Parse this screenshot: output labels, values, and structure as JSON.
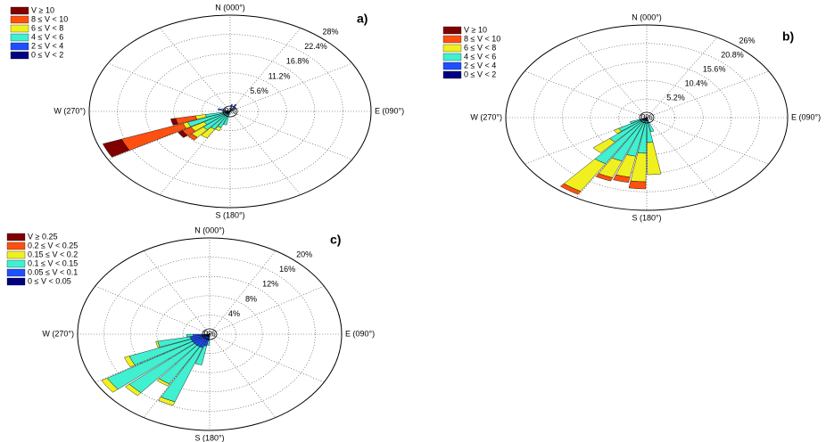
{
  "chart_data": [
    {
      "type": "windrose",
      "panel_label": "a)",
      "center_label": "0%",
      "direction_labels": [
        "N (000°)",
        "E (090°)",
        "S (180°)",
        "W (270°)"
      ],
      "rlim": [
        0,
        28
      ],
      "rticks": [
        {
          "value": 5.6,
          "label": "5.6%"
        },
        {
          "value": 11.2,
          "label": "11.2%"
        },
        {
          "value": 16.8,
          "label": "16.8%"
        },
        {
          "value": 22.4,
          "label": "22.4%"
        },
        {
          "value": 28,
          "label": "28%"
        }
      ],
      "directions": [
        10,
        30,
        50,
        195,
        205,
        215,
        225,
        235,
        245,
        255,
        265,
        285
      ],
      "series": [
        {
          "name": "0 ≤ V < 2",
          "color": "#000080",
          "values": [
            1,
            0.8,
            0.5,
            0.3,
            0.3,
            0.3,
            0.3,
            0.3,
            0.3,
            0.3,
            0.5,
            0.5
          ]
        },
        {
          "name": "2 ≤ V < 4",
          "color": "#1e50ff",
          "values": [
            1,
            1.5,
            1,
            0.7,
            0.7,
            0.7,
            0.7,
            0.7,
            0.7,
            0.7,
            1,
            2
          ]
        },
        {
          "name": "4 ≤ V < 6",
          "color": "#40f0d0",
          "values": [
            0,
            0,
            0,
            3,
            4,
            5,
            6,
            5,
            8,
            4,
            0,
            0
          ]
        },
        {
          "name": "6 ≤ V < 8",
          "color": "#f0f020",
          "values": [
            0,
            0,
            0,
            0,
            1,
            3,
            3,
            3,
            1,
            2,
            0,
            0
          ]
        },
        {
          "name": "8 ≤ V < 10",
          "color": "#ff5010",
          "values": [
            0,
            0,
            0,
            0,
            0,
            0,
            1,
            2,
            13,
            4,
            0,
            0
          ]
        },
        {
          "name": "V ≥ 10",
          "color": "#800000",
          "values": [
            0,
            0,
            0,
            0,
            0,
            0,
            0,
            1,
            4,
            1,
            0,
            0
          ]
        }
      ]
    },
    {
      "type": "windrose",
      "panel_label": "b)",
      "center_label": "0%",
      "direction_labels": [
        "N (000°)",
        "E (090°)",
        "S (180°)",
        "W (270°)"
      ],
      "rlim": [
        0,
        26
      ],
      "rticks": [
        {
          "value": 5.2,
          "label": "5.2%"
        },
        {
          "value": 10.4,
          "label": "10.4%"
        },
        {
          "value": 15.6,
          "label": "15.6%"
        },
        {
          "value": 20.8,
          "label": "20.8%"
        },
        {
          "value": 26,
          "label": "26%"
        }
      ],
      "directions": [
        165,
        175,
        185,
        195,
        205,
        215,
        225,
        235,
        245
      ],
      "series": [
        {
          "name": "0 ≤ V < 2",
          "color": "#000080",
          "values": [
            0.3,
            0.3,
            0.3,
            0.3,
            0.3,
            0.3,
            0.3,
            0.3,
            0.3
          ]
        },
        {
          "name": "2 ≤ V < 4",
          "color": "#1e50ff",
          "values": [
            0.7,
            0.7,
            0.7,
            0.7,
            0.7,
            0.7,
            0.7,
            0.7,
            1
          ]
        },
        {
          "name": "4 ≤ V < 6",
          "color": "#40f0d0",
          "values": [
            3,
            6,
            9,
            10,
            12,
            14,
            8,
            5,
            2
          ]
        },
        {
          "name": "6 ≤ V < 8",
          "color": "#f0f020",
          "values": [
            0,
            9,
            8,
            6,
            5,
            9,
            4,
            1,
            0
          ]
        },
        {
          "name": "8 ≤ V < 10",
          "color": "#ff5010",
          "values": [
            0,
            0,
            2,
            1.5,
            1,
            1,
            0,
            0,
            0
          ]
        },
        {
          "name": "V ≥ 10",
          "color": "#800000",
          "values": [
            0,
            0,
            0,
            0,
            0,
            0,
            0,
            0,
            0
          ]
        }
      ]
    },
    {
      "type": "windrose",
      "panel_label": "c)",
      "center_label": "0%",
      "direction_labels": [
        "N (000°)",
        "E (090°)",
        "S (180°)",
        "W (270°)"
      ],
      "rlim": [
        0,
        20
      ],
      "rticks": [
        {
          "value": 4,
          "label": "4%"
        },
        {
          "value": 8,
          "label": "8%"
        },
        {
          "value": 12,
          "label": "12%"
        },
        {
          "value": 16,
          "label": "16%"
        },
        {
          "value": 20,
          "label": "20%"
        }
      ],
      "directions": [
        185,
        195,
        205,
        215,
        225,
        235,
        245,
        255,
        265
      ],
      "series": [
        {
          "name": "0 ≤ V < 0.05",
          "color": "#000080",
          "values": [
            0.3,
            0.5,
            0.5,
            0.5,
            0.5,
            0.5,
            0.5,
            0.5,
            0.5
          ]
        },
        {
          "name": "0.05 ≤ V < 0.1",
          "color": "#1e50ff",
          "values": [
            1,
            2,
            2.5,
            2.5,
            2.5,
            2.5,
            2.5,
            2.5,
            2
          ]
        },
        {
          "name": "0.1 ≤ V < 0.15",
          "color": "#40f0d0",
          "values": [
            1,
            4,
            12,
            9,
            13,
            15,
            10,
            5,
            1
          ]
        },
        {
          "name": "0.15 ≤ V < 0.2",
          "color": "#f0f020",
          "values": [
            0,
            0,
            0.8,
            0.5,
            0.8,
            1,
            0.8,
            0.3,
            0
          ]
        },
        {
          "name": "0.2 ≤ V < 0.25",
          "color": "#ff5010",
          "values": [
            0,
            0,
            0,
            0,
            0,
            0,
            0,
            0,
            0
          ]
        },
        {
          "name": "V ≥ 0.25",
          "color": "#800000",
          "values": [
            0,
            0,
            0,
            0,
            0,
            0,
            0,
            0,
            0
          ]
        }
      ]
    }
  ]
}
